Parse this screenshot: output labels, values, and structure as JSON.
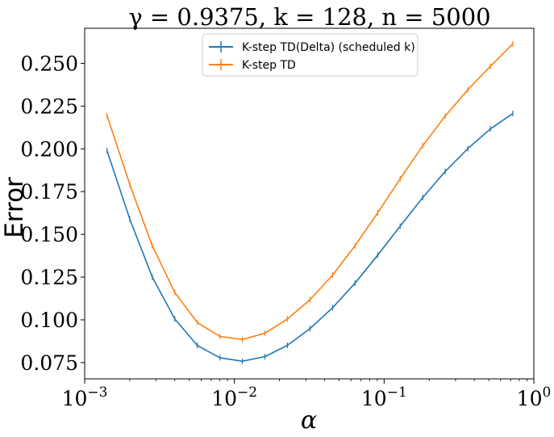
{
  "chart_data": {
    "type": "line",
    "title": "γ = 0.9375, k = 128, n = 5000",
    "xlabel": "α",
    "ylabel": "Error",
    "xscale": "log",
    "xlim": [
      0.001,
      1
    ],
    "ylim": [
      0.0655,
      0.2705
    ],
    "x_ticks": [
      {
        "value": 0.001,
        "base": "10",
        "exp": "−3"
      },
      {
        "value": 0.01,
        "base": "10",
        "exp": "−2"
      },
      {
        "value": 0.1,
        "base": "10",
        "exp": "−1"
      },
      {
        "value": 1,
        "base": "10",
        "exp": "0"
      }
    ],
    "y_ticks": [
      {
        "value": 0.075,
        "label": "0.075"
      },
      {
        "value": 0.1,
        "label": "0.100"
      },
      {
        "value": 0.125,
        "label": "0.125"
      },
      {
        "value": 0.15,
        "label": "0.150"
      },
      {
        "value": 0.175,
        "label": "0.175"
      },
      {
        "value": 0.2,
        "label": "0.200"
      },
      {
        "value": 0.225,
        "label": "0.225"
      },
      {
        "value": 0.25,
        "label": "0.250"
      }
    ],
    "grid": false,
    "legend_position": "top-center",
    "series": [
      {
        "name": "K-step TD(Delta) (scheduled k)",
        "color": "#1f77b4",
        "x": [
          0.00141,
          0.002,
          0.00283,
          0.004,
          0.00566,
          0.008,
          0.0113,
          0.016,
          0.0226,
          0.032,
          0.0453,
          0.064,
          0.0905,
          0.128,
          0.181,
          0.256,
          0.362,
          0.512,
          0.724
        ],
        "y": [
          0.199,
          0.159,
          0.125,
          0.1005,
          0.085,
          0.0778,
          0.0758,
          0.0785,
          0.0851,
          0.0949,
          0.1071,
          0.1215,
          0.1378,
          0.1548,
          0.1715,
          0.1868,
          0.2001,
          0.2116,
          0.2207
        ]
      },
      {
        "name": "K-step TD",
        "color": "#ff7f0e",
        "x": [
          0.00141,
          0.002,
          0.00283,
          0.004,
          0.00566,
          0.008,
          0.0113,
          0.016,
          0.0226,
          0.032,
          0.0453,
          0.064,
          0.0905,
          0.128,
          0.181,
          0.256,
          0.362,
          0.512,
          0.724
        ],
        "y": [
          0.2195,
          0.1792,
          0.1433,
          0.116,
          0.0984,
          0.0903,
          0.0885,
          0.0922,
          0.1005,
          0.1118,
          0.1262,
          0.1434,
          0.1625,
          0.1825,
          0.2018,
          0.2192,
          0.2345,
          0.2482,
          0.2614
        ]
      }
    ]
  }
}
